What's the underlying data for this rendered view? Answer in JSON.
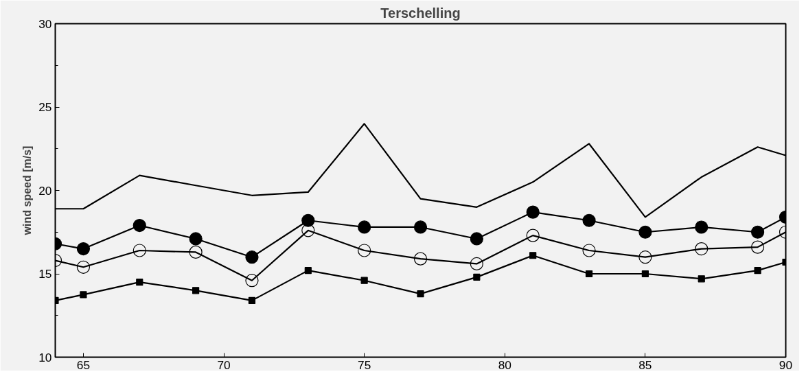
{
  "chart_data": {
    "type": "line",
    "title": "Terschelling",
    "ylabel": "wind speed [m/s]",
    "x": [
      64,
      65,
      67,
      69,
      71,
      73,
      75,
      77,
      79,
      81,
      83,
      85,
      87,
      89,
      90
    ],
    "series": [
      {
        "color": "#000000",
        "marker": "none",
        "values": [
          18.9,
          18.9,
          20.9,
          20.3,
          19.7,
          19.9,
          24.0,
          19.5,
          19.0,
          20.5,
          22.8,
          18.4,
          20.8,
          22.6,
          22.1
        ]
      },
      {
        "color": "#000000",
        "marker": "circle",
        "values": [
          16.8,
          16.5,
          17.9,
          17.1,
          16.0,
          18.2,
          17.8,
          17.8,
          17.1,
          18.7,
          18.2,
          17.5,
          17.8,
          17.5,
          18.4
        ]
      },
      {
        "color": "#000000",
        "marker": "circle",
        "values": [
          15.8,
          15.4,
          16.4,
          16.3,
          14.6,
          17.6,
          16.4,
          15.9,
          15.6,
          17.3,
          16.4,
          16.0,
          16.5,
          16.6,
          17.5
        ]
      },
      {
        "color": "#000000",
        "marker": "square",
        "values": [
          13.4,
          13.75,
          14.5,
          14.0,
          13.4,
          15.2,
          14.6,
          13.8,
          14.8,
          16.1,
          15.0,
          15.0,
          14.7,
          15.2,
          15.7
        ]
      }
    ],
    "xlim": [
      64,
      90
    ],
    "xticks": [
      65,
      70,
      75,
      80,
      85,
      90
    ],
    "ylim": [
      10,
      30
    ],
    "yticks": [
      10,
      {
        "value": 12.5,
        "label": null
      },
      15,
      {
        "value": 17.5,
        "label": null
      },
      20,
      {
        "value": 22.5,
        "label": null
      },
      25,
      {
        "value": 27.5,
        "label": null
      },
      30
    ],
    "grid": false,
    "line_style": "solid"
  }
}
